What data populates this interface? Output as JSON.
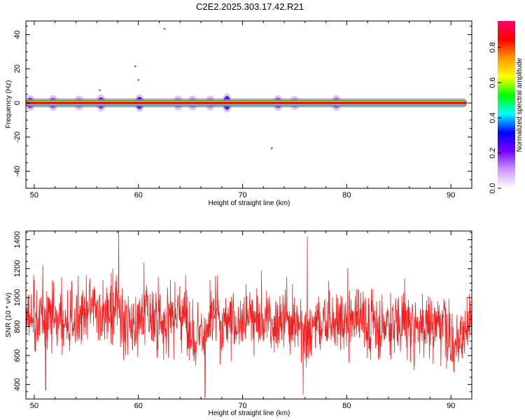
{
  "figure": {
    "title": "C2E2.2025.303.17.42.R21"
  },
  "chart_data": [
    {
      "type": "heatmap",
      "xlabel": "Height of straight line (km)",
      "ylabel": "Frequency (Hz)",
      "xlim": [
        49.2,
        92
      ],
      "ylim": [
        -50,
        48
      ],
      "xticks": [
        50,
        60,
        70,
        80,
        90
      ],
      "yticks": [
        -40,
        -20,
        0,
        20,
        40
      ],
      "band": {
        "freq_center": 0,
        "freq_halfwidth": 1.5,
        "x_start": 49.2,
        "x_end": 91.5
      },
      "blobs": [
        {
          "x": 49.6,
          "f": 1.5,
          "amp": 0.5
        },
        {
          "x": 51.8,
          "f": 1.5,
          "amp": 0.4
        },
        {
          "x": 54.3,
          "f": 1.2,
          "amp": 0.3
        },
        {
          "x": 56.4,
          "f": 1.8,
          "amp": 0.5
        },
        {
          "x": 60.1,
          "f": 2.0,
          "amp": 0.6
        },
        {
          "x": 63.8,
          "f": 1.2,
          "amp": 0.3
        },
        {
          "x": 65.2,
          "f": 1.2,
          "amp": 0.3
        },
        {
          "x": 66.9,
          "f": 1.2,
          "amp": 0.3
        },
        {
          "x": 68.5,
          "f": 2.5,
          "amp": 0.6
        },
        {
          "x": 73.4,
          "f": 1.5,
          "amp": 0.4
        },
        {
          "x": 75.0,
          "f": 1.0,
          "amp": 0.25
        },
        {
          "x": 79.0,
          "f": 1.5,
          "amp": 0.35
        }
      ],
      "specks": [
        {
          "x": 62.5,
          "f": 43.5
        },
        {
          "x": 59.7,
          "f": 21.5
        },
        {
          "x": 60.0,
          "f": 13.5
        },
        {
          "x": 72.8,
          "f": -26.5
        },
        {
          "x": 56.3,
          "f": 7.5
        }
      ],
      "colorbar": {
        "label": "Normalized spectral amplitude",
        "range": [
          0,
          0.95
        ],
        "ticks": [
          0.0,
          0.2,
          0.4,
          0.6,
          0.8
        ],
        "tick_labels": [
          "0.0",
          "0.2",
          "0.4",
          "0.6",
          "0.8"
        ],
        "colors": [
          "#ffffff",
          "#cc99ff",
          "#7700ff",
          "#0000ff",
          "#00ffff",
          "#00ff00",
          "#ffff00",
          "#ff9900",
          "#ff0000",
          "#ff0066"
        ]
      }
    },
    {
      "type": "line",
      "xlabel": "Height of straight line (km)",
      "ylabel": "SNR (10 * v/v)",
      "xlim": [
        49.2,
        92
      ],
      "ylim": [
        300,
        1460
      ],
      "xticks": [
        50,
        60,
        70,
        80,
        90
      ],
      "yticks": [
        400,
        600,
        800,
        1000,
        1200,
        1400
      ],
      "series": [
        {
          "color": "#ee2222",
          "mean": 850,
          "spread": 210,
          "points": 1500,
          "peaks": [
            {
              "x": 58.1,
              "y": 1460
            },
            {
              "x": 76.2,
              "y": 1420
            },
            {
              "x": 66.4,
              "y": 310
            },
            {
              "x": 75.8,
              "y": 330
            },
            {
              "x": 51.1,
              "y": 360
            }
          ]
        }
      ]
    }
  ]
}
